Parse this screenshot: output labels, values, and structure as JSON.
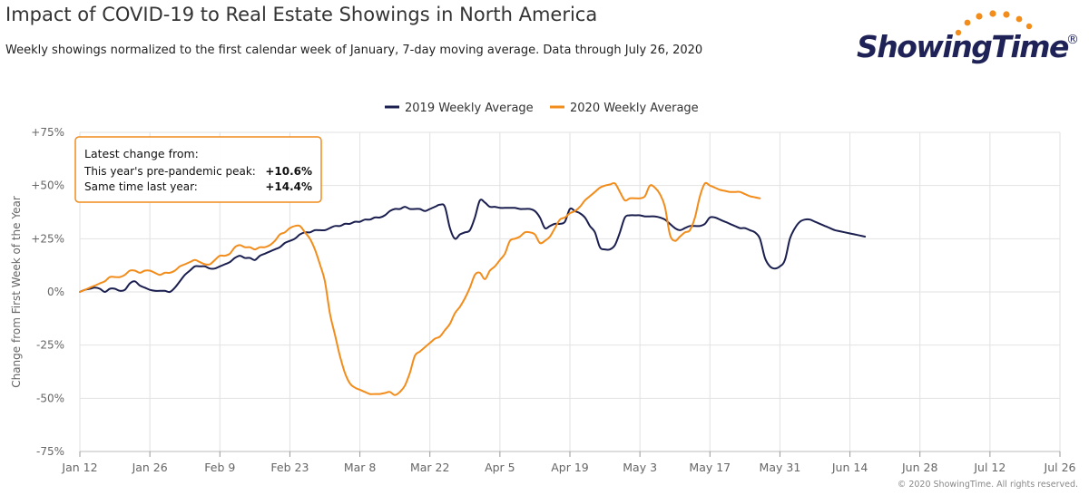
{
  "title": "Impact of COVID-19 to Real Estate Showings in North America",
  "subtitle": "Weekly showings normalized to the first calendar week of January, 7-day moving average. Data through July 26, 2020",
  "logo": {
    "text": "ShowingTime",
    "reg": "®"
  },
  "copyright": "© 2020 ShowingTime. All rights reserved.",
  "colors": {
    "series2019": "#1b1f4f",
    "series2020": "#f28c1b",
    "grid": "#e2e2e2",
    "annotation_border": "#f28c1b"
  },
  "annotation": {
    "heading": "Latest change from:",
    "rows": [
      {
        "label": "This year's pre-pandemic peak:",
        "value": "+10.6%"
      },
      {
        "label": "Same time last year:",
        "value": "+14.4%"
      }
    ]
  },
  "chart_data": {
    "type": "line",
    "ylabel": "Change from First Week of the Year",
    "xlabel": "",
    "ylim": [
      -75,
      75
    ],
    "y_ticks": [
      {
        "value": -75,
        "label": "-75%"
      },
      {
        "value": -50,
        "label": "-50%"
      },
      {
        "value": -25,
        "label": "-25%"
      },
      {
        "value": 0,
        "label": "0%"
      },
      {
        "value": 25,
        "label": "+25%"
      },
      {
        "value": 50,
        "label": "+50%"
      },
      {
        "value": 75,
        "label": "+75%"
      }
    ],
    "x_range_days": [
      0,
      196
    ],
    "x_ticks": [
      {
        "day": 0,
        "label": "Jan 12"
      },
      {
        "day": 14,
        "label": "Jan 26"
      },
      {
        "day": 28,
        "label": "Feb 9"
      },
      {
        "day": 42,
        "label": "Feb 23"
      },
      {
        "day": 56,
        "label": "Mar 8"
      },
      {
        "day": 70,
        "label": "Mar 22"
      },
      {
        "day": 84,
        "label": "Apr 5"
      },
      {
        "day": 98,
        "label": "Apr 19"
      },
      {
        "day": 112,
        "label": "May 3"
      },
      {
        "day": 126,
        "label": "May 17"
      },
      {
        "day": 140,
        "label": "May 31"
      },
      {
        "day": 154,
        "label": "Jun 14"
      },
      {
        "day": 168,
        "label": "Jun 28"
      },
      {
        "day": 182,
        "label": "Jul 12"
      },
      {
        "day": 196,
        "label": "Jul 26"
      }
    ],
    "grid": true,
    "legend_position": "top-center",
    "series": [
      {
        "name": "2019 Weekly Average",
        "points": [
          [
            0,
            0
          ],
          [
            1,
            1
          ],
          [
            2,
            1.5
          ],
          [
            3,
            2
          ],
          [
            4,
            1.5
          ],
          [
            5,
            0
          ],
          [
            6,
            1.5
          ],
          [
            7,
            1.5
          ],
          [
            8,
            0.5
          ],
          [
            9,
            1
          ],
          [
            10,
            4
          ],
          [
            11,
            5
          ],
          [
            12,
            3
          ],
          [
            13,
            2
          ],
          [
            14,
            1
          ],
          [
            15,
            0.5
          ],
          [
            16,
            0.5
          ],
          [
            17,
            0.5
          ],
          [
            18,
            0
          ],
          [
            19,
            2
          ],
          [
            20,
            5
          ],
          [
            21,
            8
          ],
          [
            22,
            10
          ],
          [
            23,
            12
          ],
          [
            24,
            12
          ],
          [
            25,
            12
          ],
          [
            26,
            11
          ],
          [
            27,
            11
          ],
          [
            28,
            12
          ],
          [
            29,
            13
          ],
          [
            30,
            14
          ],
          [
            31,
            16
          ],
          [
            32,
            17
          ],
          [
            33,
            16
          ],
          [
            34,
            16
          ],
          [
            35,
            15
          ],
          [
            36,
            17
          ],
          [
            37,
            18
          ],
          [
            38,
            19
          ],
          [
            39,
            20
          ],
          [
            40,
            21
          ],
          [
            41,
            23
          ],
          [
            42,
            24
          ],
          [
            43,
            25
          ],
          [
            44,
            27
          ],
          [
            45,
            28
          ],
          [
            46,
            28
          ],
          [
            47,
            29
          ],
          [
            48,
            29
          ],
          [
            49,
            29
          ],
          [
            50,
            30
          ],
          [
            51,
            31
          ],
          [
            52,
            31
          ],
          [
            53,
            32
          ],
          [
            54,
            32
          ],
          [
            55,
            33
          ],
          [
            56,
            33
          ],
          [
            57,
            34
          ],
          [
            58,
            34
          ],
          [
            59,
            35
          ],
          [
            60,
            35
          ],
          [
            61,
            36
          ],
          [
            62,
            38
          ],
          [
            63,
            39
          ],
          [
            64,
            39
          ],
          [
            65,
            40
          ],
          [
            66,
            39
          ],
          [
            67,
            39
          ],
          [
            68,
            39
          ],
          [
            69,
            38
          ],
          [
            70,
            39
          ],
          [
            71,
            40
          ],
          [
            72,
            41
          ],
          [
            73,
            40
          ],
          [
            74,
            30
          ],
          [
            75,
            25
          ],
          [
            76,
            27
          ],
          [
            77,
            28
          ],
          [
            78,
            29
          ],
          [
            79,
            35
          ],
          [
            80,
            43
          ],
          [
            81,
            42
          ],
          [
            82,
            40
          ],
          [
            83,
            40
          ],
          [
            84,
            39.5
          ],
          [
            85,
            39.5
          ],
          [
            86,
            39.5
          ],
          [
            87,
            39.5
          ],
          [
            88,
            39
          ],
          [
            89,
            39
          ],
          [
            90,
            39
          ],
          [
            91,
            38
          ],
          [
            92,
            35
          ],
          [
            93,
            30
          ],
          [
            94,
            31
          ],
          [
            95,
            32
          ],
          [
            96,
            32
          ],
          [
            97,
            33
          ],
          [
            98,
            39
          ],
          [
            99,
            38
          ],
          [
            100,
            37
          ],
          [
            101,
            35
          ],
          [
            102,
            31
          ],
          [
            103,
            28
          ],
          [
            104,
            21
          ],
          [
            105,
            20
          ],
          [
            106,
            20
          ],
          [
            107,
            22
          ],
          [
            108,
            28
          ],
          [
            109,
            35
          ],
          [
            110,
            36
          ],
          [
            111,
            36
          ],
          [
            112,
            36
          ],
          [
            113,
            35.5
          ],
          [
            114,
            35.5
          ],
          [
            115,
            35.5
          ],
          [
            116,
            35
          ],
          [
            117,
            34
          ],
          [
            118,
            32
          ],
          [
            119,
            30
          ],
          [
            120,
            29
          ],
          [
            121,
            30
          ],
          [
            122,
            31
          ],
          [
            123,
            31
          ],
          [
            124,
            31
          ],
          [
            125,
            32
          ],
          [
            126,
            35
          ],
          [
            127,
            35
          ],
          [
            128,
            34
          ],
          [
            129,
            33
          ],
          [
            130,
            32
          ],
          [
            131,
            31
          ],
          [
            132,
            30
          ],
          [
            133,
            30
          ],
          [
            134,
            29
          ],
          [
            135,
            28
          ],
          [
            136,
            25
          ],
          [
            137,
            16
          ],
          [
            138,
            12
          ],
          [
            139,
            11
          ],
          [
            140,
            12
          ],
          [
            141,
            15
          ],
          [
            142,
            25
          ],
          [
            143,
            30
          ],
          [
            144,
            33
          ],
          [
            145,
            34
          ],
          [
            146,
            34
          ],
          [
            147,
            33
          ],
          [
            148,
            32
          ],
          [
            149,
            31
          ],
          [
            150,
            30
          ],
          [
            151,
            29
          ],
          [
            152,
            28.5
          ],
          [
            153,
            28
          ],
          [
            154,
            27.5
          ],
          [
            155,
            27
          ],
          [
            156,
            26.5
          ],
          [
            157,
            26
          ]
        ]
      },
      {
        "name": "2020 Weekly Average",
        "points": [
          [
            0,
            0
          ],
          [
            1,
            1
          ],
          [
            2,
            2
          ],
          [
            3,
            3
          ],
          [
            4,
            4
          ],
          [
            5,
            5
          ],
          [
            6,
            7
          ],
          [
            7,
            7
          ],
          [
            8,
            7
          ],
          [
            9,
            8
          ],
          [
            10,
            10
          ],
          [
            11,
            10
          ],
          [
            12,
            9
          ],
          [
            13,
            10
          ],
          [
            14,
            10
          ],
          [
            15,
            9
          ],
          [
            16,
            8
          ],
          [
            17,
            9
          ],
          [
            18,
            9
          ],
          [
            19,
            10
          ],
          [
            20,
            12
          ],
          [
            21,
            13
          ],
          [
            22,
            14
          ],
          [
            23,
            15
          ],
          [
            24,
            14
          ],
          [
            25,
            13
          ],
          [
            26,
            13
          ],
          [
            27,
            15
          ],
          [
            28,
            17
          ],
          [
            29,
            17
          ],
          [
            30,
            18
          ],
          [
            31,
            21
          ],
          [
            32,
            22
          ],
          [
            33,
            21
          ],
          [
            34,
            21
          ],
          [
            35,
            20
          ],
          [
            36,
            21
          ],
          [
            37,
            21
          ],
          [
            38,
            22
          ],
          [
            39,
            24
          ],
          [
            40,
            27
          ],
          [
            41,
            28
          ],
          [
            42,
            30
          ],
          [
            43,
            31
          ],
          [
            44,
            31
          ],
          [
            45,
            28
          ],
          [
            46,
            25
          ],
          [
            47,
            20
          ],
          [
            48,
            13
          ],
          [
            49,
            5
          ],
          [
            50,
            -10
          ],
          [
            51,
            -20
          ],
          [
            52,
            -30
          ],
          [
            53,
            -38
          ],
          [
            54,
            -43
          ],
          [
            55,
            -45
          ],
          [
            56,
            -46
          ],
          [
            57,
            -47
          ],
          [
            58,
            -48
          ],
          [
            59,
            -48
          ],
          [
            60,
            -48
          ],
          [
            61,
            -47.5
          ],
          [
            62,
            -47
          ],
          [
            63,
            -48.5
          ],
          [
            64,
            -47
          ],
          [
            65,
            -44
          ],
          [
            66,
            -38
          ],
          [
            67,
            -30
          ],
          [
            68,
            -28
          ],
          [
            69,
            -26
          ],
          [
            70,
            -24
          ],
          [
            71,
            -22
          ],
          [
            72,
            -21
          ],
          [
            73,
            -18
          ],
          [
            74,
            -15
          ],
          [
            75,
            -10
          ],
          [
            76,
            -7
          ],
          [
            77,
            -3
          ],
          [
            78,
            2
          ],
          [
            79,
            8
          ],
          [
            80,
            9
          ],
          [
            81,
            6
          ],
          [
            82,
            10
          ],
          [
            83,
            12
          ],
          [
            84,
            15
          ],
          [
            85,
            18
          ],
          [
            86,
            24
          ],
          [
            87,
            25
          ],
          [
            88,
            26
          ],
          [
            89,
            28
          ],
          [
            90,
            28
          ],
          [
            91,
            27
          ],
          [
            92,
            23
          ],
          [
            93,
            24
          ],
          [
            94,
            26
          ],
          [
            95,
            30
          ],
          [
            96,
            34
          ],
          [
            97,
            35
          ],
          [
            98,
            37
          ],
          [
            99,
            38
          ],
          [
            100,
            40
          ],
          [
            101,
            43
          ],
          [
            102,
            45
          ],
          [
            103,
            47
          ],
          [
            104,
            49
          ],
          [
            105,
            50
          ],
          [
            106,
            50.5
          ],
          [
            107,
            51
          ],
          [
            108,
            47
          ],
          [
            109,
            43
          ],
          [
            110,
            44
          ],
          [
            111,
            44
          ],
          [
            112,
            44
          ],
          [
            113,
            45
          ],
          [
            114,
            50
          ],
          [
            115,
            49
          ],
          [
            116,
            46
          ],
          [
            117,
            40
          ],
          [
            118,
            27
          ],
          [
            119,
            24
          ],
          [
            120,
            26
          ],
          [
            121,
            28
          ],
          [
            122,
            29
          ],
          [
            123,
            35
          ],
          [
            124,
            45
          ],
          [
            125,
            51
          ],
          [
            126,
            50
          ],
          [
            127,
            49
          ],
          [
            128,
            48
          ],
          [
            129,
            47.5
          ],
          [
            130,
            47
          ],
          [
            131,
            47
          ],
          [
            132,
            47
          ],
          [
            133,
            46
          ],
          [
            134,
            45
          ],
          [
            135,
            44.5
          ],
          [
            136,
            44
          ]
        ]
      }
    ]
  }
}
